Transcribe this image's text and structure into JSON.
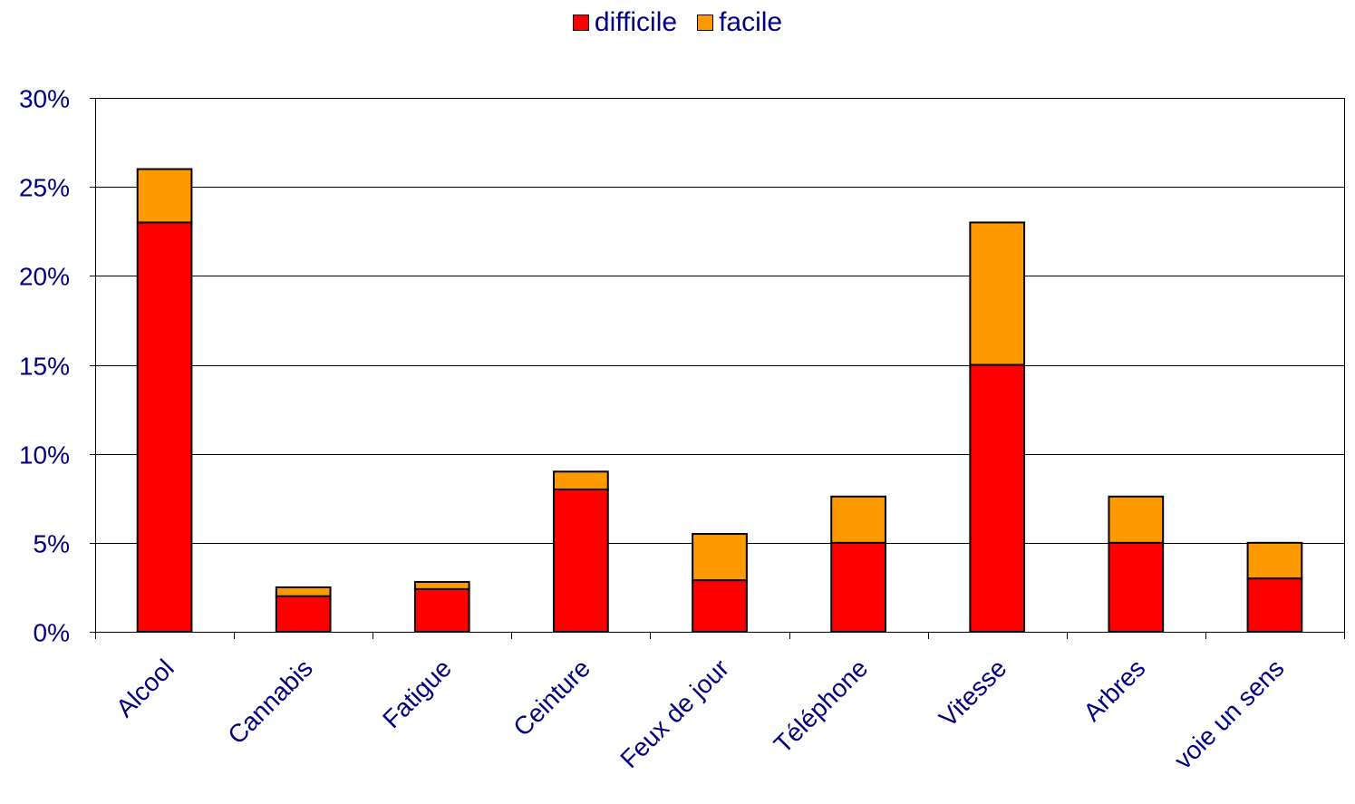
{
  "chart_data": {
    "type": "bar",
    "stacked": true,
    "categories": [
      "Alcool",
      "Cannabis",
      "Fatigue",
      "Ceinture",
      "Feux de jour",
      "Téléphone",
      "Vitesse",
      "Arbres",
      "voie un sens"
    ],
    "series": [
      {
        "name": "difficile",
        "color": "#ff0000",
        "values": [
          23,
          2,
          2.4,
          8,
          2.9,
          5,
          15,
          5,
          3
        ]
      },
      {
        "name": "facile",
        "color": "#ff9900",
        "values": [
          3,
          0.5,
          0.4,
          1,
          2.6,
          2.6,
          8,
          2.6,
          2
        ]
      }
    ],
    "ylim": [
      0,
      30
    ],
    "yticks": [
      0,
      5,
      10,
      15,
      20,
      25,
      30
    ],
    "ytick_labels": [
      "0%",
      "5%",
      "10%",
      "15%",
      "20%",
      "25%",
      "30%"
    ],
    "ytick_color": "#000080",
    "xtick_color": "#000080",
    "grid": true,
    "legend_position": "top-center",
    "title": "",
    "xlabel": "",
    "ylabel": ""
  }
}
